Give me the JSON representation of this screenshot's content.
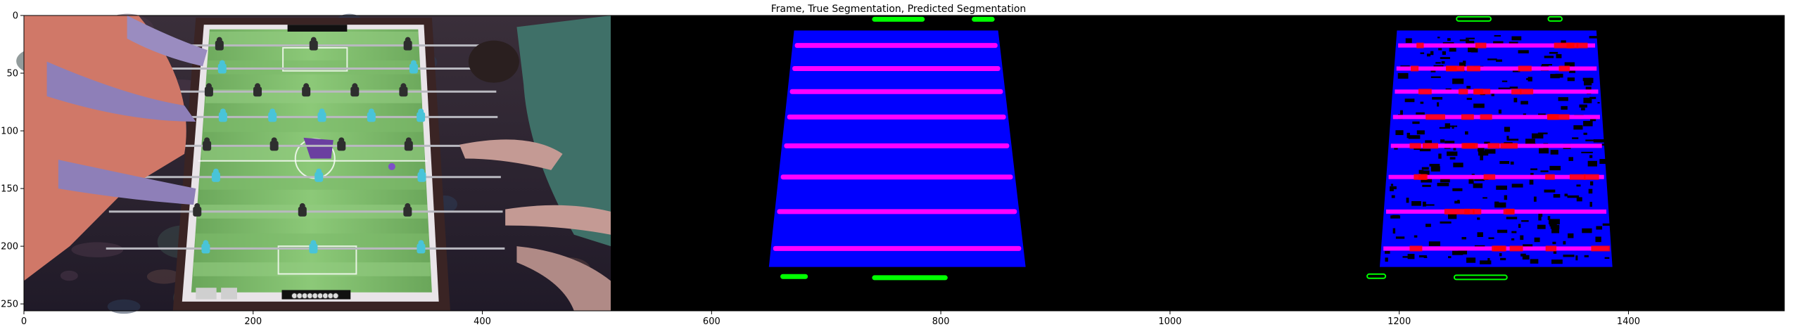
{
  "chart_data": {
    "type": "image",
    "title": "Frame, True Segmentation, Predicted Segmentation",
    "xlim": [
      0,
      1536
    ],
    "ylim": [
      256,
      0
    ],
    "xticks": [
      0,
      200,
      400,
      600,
      800,
      1000,
      1200,
      1400
    ],
    "yticks": [
      0,
      50,
      100,
      150,
      200,
      250
    ],
    "panels": [
      {
        "name": "Frame",
        "x_range": [
          0,
          512
        ]
      },
      {
        "name": "True Segmentation",
        "x_range": [
          512,
          1024
        ]
      },
      {
        "name": "Predicted Segmentation",
        "x_range": [
          1024,
          1536
        ]
      }
    ],
    "table": {
      "left_top_x": 157,
      "right_top_x": 349,
      "left_bottom_x": 138,
      "right_bottom_x": 362,
      "top_y": 8,
      "bottom_y": 248
    },
    "segmentation_field": {
      "left_top_x": 160,
      "right_top_x": 338,
      "left_bottom_x": 138,
      "right_bottom_x": 362,
      "top_y": 13,
      "bottom_y": 218
    },
    "rods_y": [
      26,
      46,
      66,
      88,
      113,
      140,
      170,
      202
    ],
    "colors": {
      "background": "#000000",
      "field": "#0000ff",
      "rods": "#ff00ff",
      "players": "#00ff00",
      "errors": "#ff0000",
      "table_green": "#7fb86a"
    }
  }
}
